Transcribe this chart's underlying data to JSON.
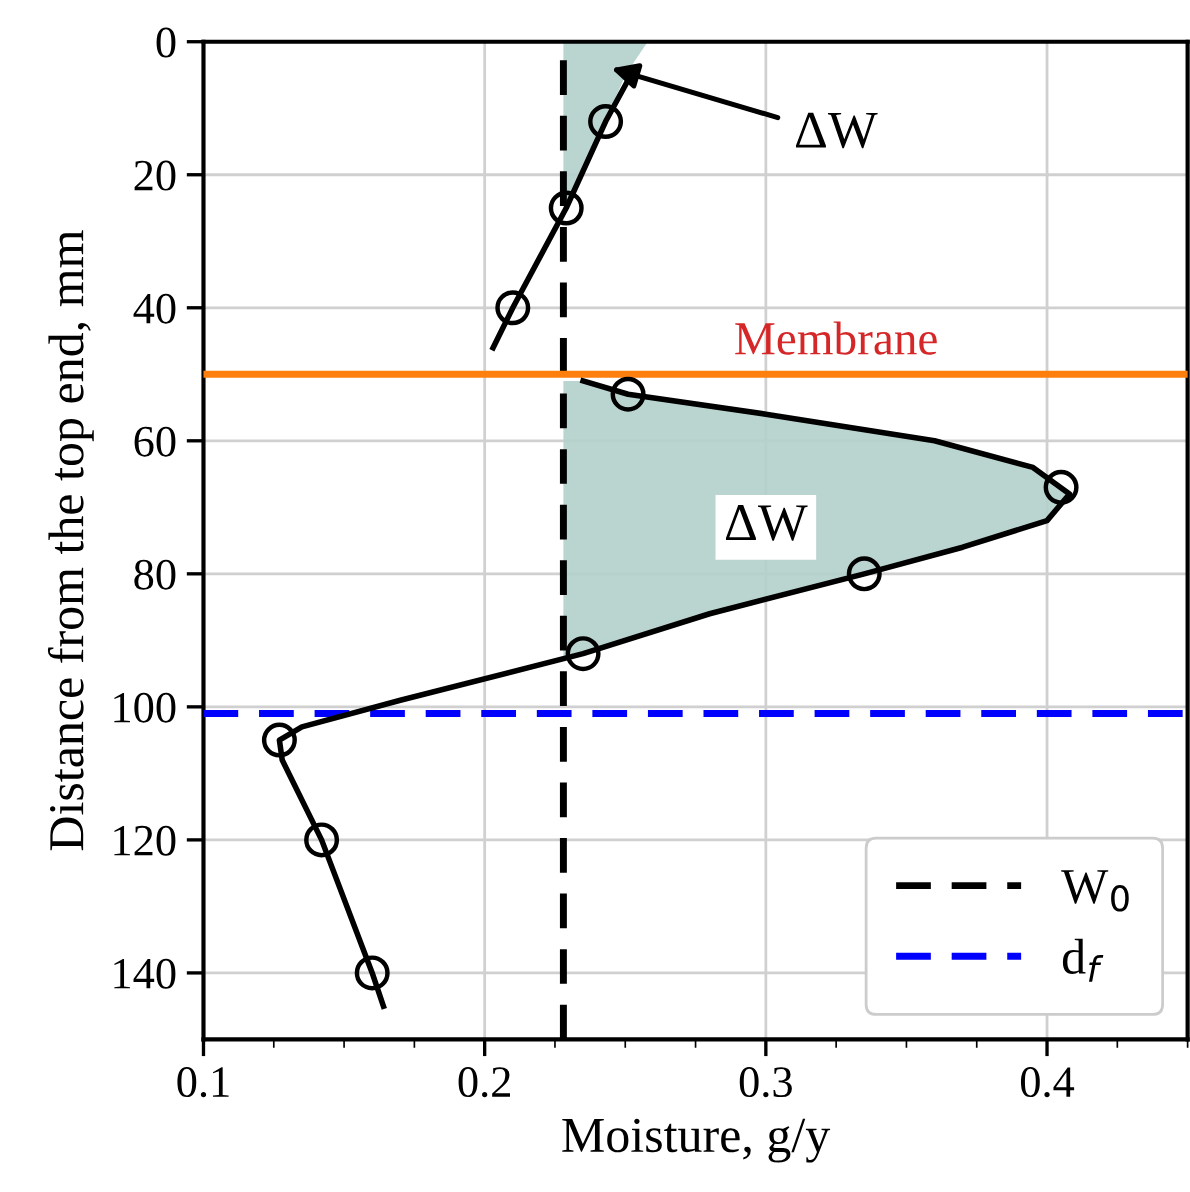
{
  "chart_data": {
    "type": "line",
    "xlabel": "Moisture, g/y",
    "ylabel": "Distance from the top end, mm",
    "xlim": [
      0.1,
      0.45
    ],
    "xticks": [
      0.1,
      0.2,
      0.3,
      0.4
    ],
    "ylim": [
      150,
      0
    ],
    "yticks": [
      0,
      20,
      40,
      60,
      80,
      100,
      120,
      140
    ],
    "grid": true,
    "legend": "bottom right",
    "series": [
      {
        "type": "area",
        "color": "#b3cfcb",
        "x": [
          0.258,
          0.25,
          0.243,
          0.229,
          0.228
        ],
        "values": [
          0,
          5,
          12,
          25,
          27
        ]
      },
      {
        "type": "area",
        "color": "#b3cfcb",
        "x": [
          0.235,
          0.251,
          0.3,
          0.36,
          0.395,
          0.408,
          0.4,
          0.37,
          0.335,
          0.28,
          0.235,
          0.228
        ],
        "values": [
          51,
          53,
          56,
          60,
          64,
          68,
          72,
          76,
          80,
          86,
          92,
          93
        ]
      },
      {
        "color": "#000000",
        "marker": "none",
        "x": [
          0.252,
          0.243,
          0.229,
          0.21,
          0.203
        ],
        "values": [
          5,
          12,
          25,
          40,
          46
        ]
      },
      {
        "color": "#000000",
        "marker": "none",
        "x": [
          0.235,
          0.251,
          0.3,
          0.36,
          0.395,
          0.408,
          0.4,
          0.37,
          0.335,
          0.28,
          0.235,
          0.17,
          0.135,
          0.127,
          0.128,
          0.142,
          0.16,
          0.164
        ],
        "values": [
          51,
          53,
          56,
          60,
          64,
          68,
          72,
          76,
          80,
          86,
          92,
          99,
          103,
          105,
          108,
          120,
          140,
          145
        ]
      },
      {
        "type": "scatter",
        "color": "#000000",
        "marker": "circle",
        "x": [
          0.243,
          0.229,
          0.21,
          0.251,
          0.405,
          0.335,
          0.235,
          0.127,
          0.142,
          0.16
        ],
        "values": [
          12,
          25,
          40,
          53,
          67,
          80,
          92,
          105,
          120,
          140
        ]
      }
    ],
    "ref_lines": [
      {
        "axis": "x",
        "value": 0.228,
        "label": "W$_{0}$",
        "color": "#000000",
        "line_style": "dashed"
      },
      {
        "axis": "y",
        "value": 101,
        "label": "d$_{f}$",
        "color": "#0000ff",
        "line_style": "dashed"
      },
      {
        "axis": "y",
        "value": 50,
        "label": "Membrane",
        "color": "#ff7f0e",
        "line_style": "solid"
      }
    ],
    "annotations": [
      {
        "text": "ΔW",
        "x": 0.245,
        "y": 4
      },
      "ΔW"
    ]
  }
}
